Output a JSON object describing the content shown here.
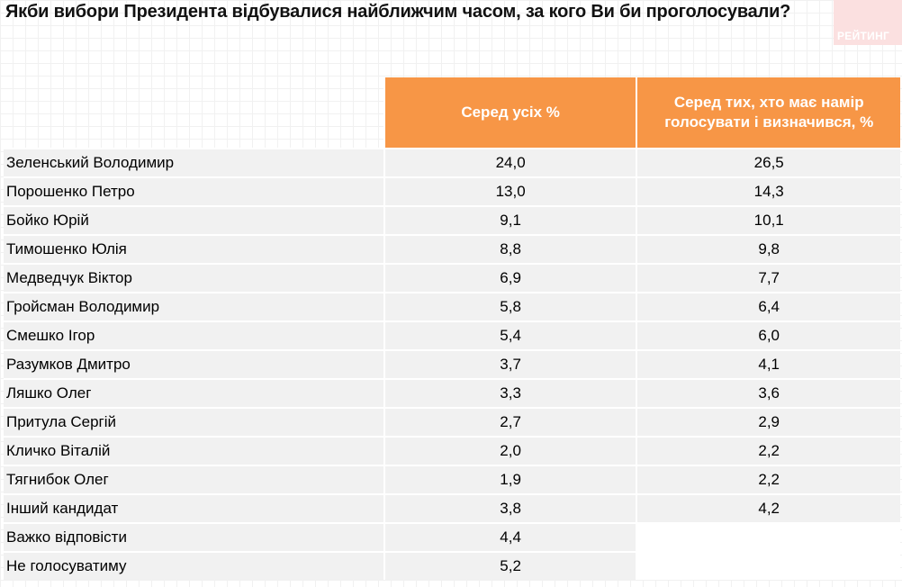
{
  "title": "Якби вибори Президента відбувалися найближчим часом, за кого Ви би проголосували?",
  "logo": {
    "text": "РЕЙТИНГ"
  },
  "table": {
    "headers": [
      "",
      "Серед усіх %",
      "Серед тих, хто має намір голосувати і визначився, %"
    ],
    "rows": [
      {
        "name": "Зеленський Володимир",
        "all": "24,0",
        "decided": "26,5"
      },
      {
        "name": "Порошенко Петро",
        "all": "13,0",
        "decided": "14,3"
      },
      {
        "name": "Бойко Юрій",
        "all": "9,1",
        "decided": "10,1"
      },
      {
        "name": "Тимошенко Юлія",
        "all": "8,8",
        "decided": "9,8"
      },
      {
        "name": "Медведчук Віктор",
        "all": "6,9",
        "decided": "7,7"
      },
      {
        "name": "Гройсман Володимир",
        "all": "5,8",
        "decided": "6,4"
      },
      {
        "name": "Смешко Ігор",
        "all": "5,4",
        "decided": "6,0"
      },
      {
        "name": "Разумков Дмитро",
        "all": "3,7",
        "decided": "4,1"
      },
      {
        "name": "Ляшко Олег",
        "all": "3,3",
        "decided": "3,6"
      },
      {
        "name": "Притула Сергій",
        "all": "2,7",
        "decided": "2,9"
      },
      {
        "name": "Кличко Віталій",
        "all": "2,0",
        "decided": "2,2"
      },
      {
        "name": "Тягнибок Олег",
        "all": "1,9",
        "decided": "2,2"
      },
      {
        "name": "Інший кандидат",
        "all": "3,8",
        "decided": "4,2"
      },
      {
        "name": "Важко відповісти",
        "all": "4,4",
        "decided": ""
      },
      {
        "name": "Не голосуватиму",
        "all": "5,2",
        "decided": ""
      }
    ]
  }
}
